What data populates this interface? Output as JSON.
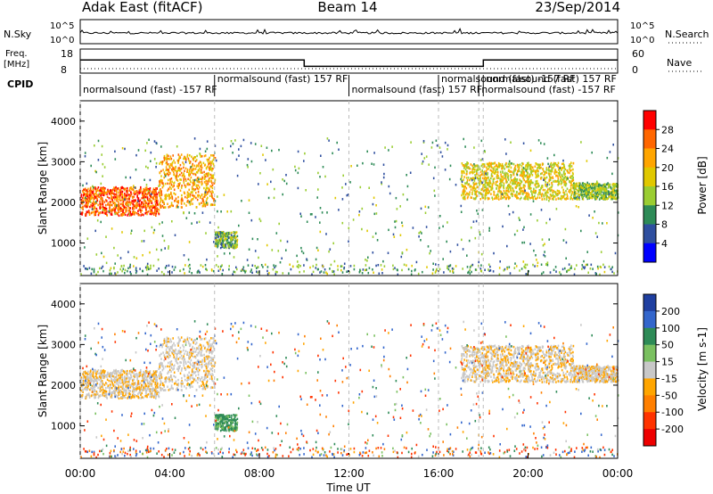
{
  "header": {
    "station": "Adak East (fitACF)",
    "beam": "Beam 14",
    "date": "23/Sep/2014"
  },
  "summary": {
    "nsky_label": "N.Sky",
    "nsky_ticks": [
      "10^5",
      "10^0"
    ],
    "nsearch_label": "N.Search",
    "nsearch_ticks": [
      "10^5",
      "10^0"
    ],
    "freq_label": "Freq.",
    "freq_unit": "[MHz]",
    "freq_ticks": [
      "18",
      "8"
    ],
    "nave_label": "Nave",
    "nave_ticks": [
      "60",
      "0"
    ],
    "cpid_label": "CPID"
  },
  "cpid_events": [
    {
      "time": 0.0,
      "text": "normalsound (fast) -157 RF",
      "row": 1
    },
    {
      "time": 6.0,
      "text": "normalsound (fast) 157 RF",
      "row": 0
    },
    {
      "time": 12.0,
      "text": "normalsound (fast) 157 RF",
      "row": 1
    },
    {
      "time": 16.0,
      "text": "normalsound (fast) -157 RF",
      "row": 0
    },
    {
      "time": 18.0,
      "text": "normalsound (fast) 157 RF",
      "row": 0
    },
    {
      "time": 17.8,
      "text": "normalsound (fast) -157 RF",
      "row": 1
    }
  ],
  "time_axis": {
    "label": "Time UT",
    "ticks": [
      "00:00",
      "04:00",
      "08:00",
      "12:00",
      "16:00",
      "20:00",
      "00:00"
    ]
  },
  "panels": {
    "power": {
      "ylabel": "Slant Range [km]",
      "yticks": [
        "1000",
        "2000",
        "3000",
        "4000"
      ],
      "cbar_label": "Power [dB]",
      "cbar_ticks": [
        "28",
        "24",
        "20",
        "16",
        "12",
        "8",
        "4"
      ],
      "cbar_colors": [
        "#ff0000",
        "#ff6600",
        "#ffa500",
        "#e0c800",
        "#9acd32",
        "#2e8b57",
        "#2f4f9f",
        "#0000ff"
      ]
    },
    "velocity": {
      "ylabel": "Slant Range [km]",
      "yticks": [
        "1000",
        "2000",
        "3000",
        "4000"
      ],
      "cbar_label": "Velocity [m s-1]",
      "cbar_ticks": [
        "200",
        "100",
        "50",
        "15",
        "-15",
        "-50",
        "-100",
        "-200"
      ],
      "cbar_colors": [
        "#1f3fa0",
        "#3366cc",
        "#2e8b57",
        "#7ac060",
        "#c8c8c8",
        "#ffa500",
        "#ff7f00",
        "#ff3300",
        "#ee0000"
      ]
    }
  },
  "chart_data": {
    "type": "heatmap",
    "title": "Adak East (fitACF)   Beam 14   23/Sep/2014",
    "xlabel": "Time UT",
    "xlim": [
      0,
      24
    ],
    "ylabel": "Slant Range [km]",
    "ylim": [
      200,
      4500
    ],
    "frequency_MHz": [
      {
        "from": 0,
        "to": 10,
        "value": 14
      },
      {
        "from": 10,
        "to": 18,
        "value": 10
      },
      {
        "from": 18,
        "to": 24,
        "value": 14
      }
    ],
    "echo_regions": [
      {
        "from": 0.0,
        "to": 3.5,
        "range_km": [
          1700,
          2400
        ],
        "power_dB": 24,
        "velocity": -10
      },
      {
        "from": 3.5,
        "to": 6.0,
        "range_km": [
          1900,
          3200
        ],
        "power_dB": 20,
        "velocity": -5
      },
      {
        "from": 6.0,
        "to": 7.0,
        "range_km": [
          900,
          1300
        ],
        "power_dB": 10,
        "velocity": 60
      },
      {
        "from": 17.0,
        "to": 22.0,
        "range_km": [
          2100,
          3000
        ],
        "power_dB": 16,
        "velocity": -10
      },
      {
        "from": 22.0,
        "to": 24.0,
        "range_km": [
          2100,
          2500
        ],
        "power_dB": 12,
        "velocity": -10
      }
    ]
  }
}
